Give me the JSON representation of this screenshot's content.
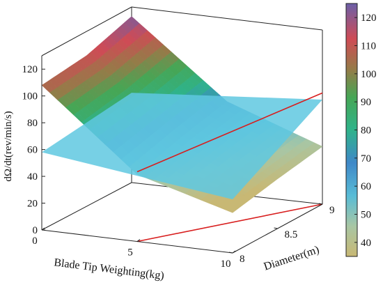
{
  "chart_data": {
    "type": "surface3d",
    "title": "",
    "xlabel": "Blade Tip Weighting(kg)",
    "ylabel": "Diameter(m)",
    "zlabel": "dΩ/dt(rev/min/s)",
    "x_ticks": [
      "0",
      "5",
      "10"
    ],
    "y_ticks": [
      "8",
      "8.5",
      "9"
    ],
    "z_ticks": [
      "0",
      "20",
      "40",
      "60",
      "80",
      "100",
      "120"
    ],
    "xlim": [
      0,
      10
    ],
    "ylim": [
      8,
      9
    ],
    "zlim": [
      0,
      130
    ],
    "x": [
      0,
      5,
      10
    ],
    "y": [
      8,
      8.5,
      9
    ],
    "z": [
      [
        108,
        112,
        123
      ],
      [
        50,
        60,
        68
      ],
      [
        30,
        37,
        43
      ]
    ],
    "reference_plane": {
      "corners": [
        [
          0,
          8,
          58
        ],
        [
          10,
          8,
          40
        ],
        [
          10,
          9,
          78
        ],
        [
          0,
          9,
          66
        ]
      ]
    },
    "intersection_line": {
      "color": "#d81e1e",
      "points": [
        [
          5,
          8,
          52
        ],
        [
          10,
          9,
          83
        ]
      ]
    },
    "colorbar": {
      "ticks": [
        "40",
        "50",
        "60",
        "70",
        "80",
        "90",
        "100",
        "110",
        "120"
      ],
      "min": 35,
      "max": 125
    },
    "grid": false,
    "box": true
  }
}
